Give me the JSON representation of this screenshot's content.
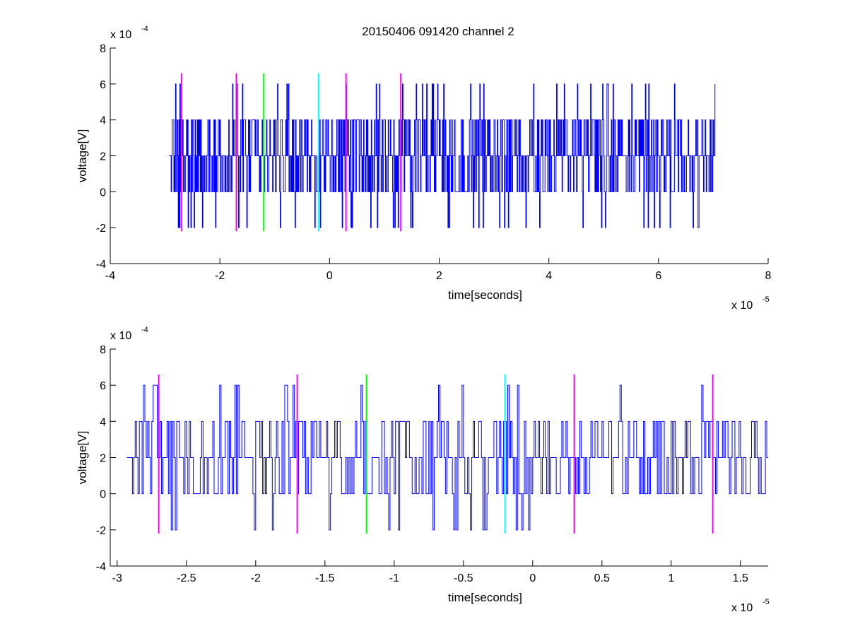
{
  "figure": {
    "title": "20150406 091420 channel 2"
  },
  "chart_data": [
    {
      "type": "line",
      "xlabel": "time[seconds]",
      "ylabel": "voltage[V]",
      "xlim": [
        -4e-05,
        8e-05
      ],
      "ylim": [
        -0.0004,
        0.0008
      ],
      "x_ticks": [
        -4,
        -2,
        0,
        2,
        4,
        6,
        8
      ],
      "y_ticks": [
        -4,
        -2,
        0,
        2,
        4,
        6,
        8
      ],
      "x_exponent_base": "x 10",
      "x_exponent_power": "-5",
      "y_exponent_base": "x 10",
      "y_exponent_power": "-4",
      "grid": false,
      "signal": {
        "color": "#0000ff",
        "x_start": -2.93e-05,
        "x_end": 7.03e-05,
        "sample_step": 1e-07,
        "levels": [
          -0.0002,
          0,
          0.0002,
          0.0004,
          0.0006
        ],
        "baseline": 0.0002
      },
      "markers": [
        {
          "x": -2.7e-05,
          "color": "#ff00ff"
        },
        {
          "x": -1.7e-05,
          "color": "#ff00ff"
        },
        {
          "x": -1.2e-05,
          "color": "#00ff00"
        },
        {
          "x": -2e-06,
          "color": "#00ffff"
        },
        {
          "x": 3e-06,
          "color": "#ff00ff"
        },
        {
          "x": 1.3e-05,
          "color": "#ff00ff"
        }
      ],
      "marker_range": [
        -0.00022,
        0.00066
      ]
    },
    {
      "type": "line",
      "xlabel": "time[seconds]",
      "ylabel": "voltage[V]",
      "xlim": [
        -3.05e-05,
        1.7e-05
      ],
      "ylim": [
        -0.0004,
        0.0008
      ],
      "x_ticks": [
        -3,
        -2.5,
        -2,
        -1.5,
        -1,
        -0.5,
        0,
        0.5,
        1,
        1.5
      ],
      "y_ticks": [
        -4,
        -2,
        0,
        2,
        4,
        6,
        8
      ],
      "x_exponent_base": "x 10",
      "x_exponent_power": "-5",
      "y_exponent_base": "x 10",
      "y_exponent_power": "-4",
      "grid": false,
      "signal": {
        "color": "#0000ff",
        "x_start": -2.93e-05,
        "x_end": 1.7e-05,
        "sample_step": 1e-07,
        "levels": [
          -0.0002,
          0,
          0.0002,
          0.0004,
          0.0006
        ],
        "baseline": 0.0002
      },
      "markers": [
        {
          "x": -2.7e-05,
          "color": "#ff00ff"
        },
        {
          "x": -1.7e-05,
          "color": "#ff00ff"
        },
        {
          "x": -1.2e-05,
          "color": "#00ff00"
        },
        {
          "x": -2e-06,
          "color": "#00ffff"
        },
        {
          "x": 3e-06,
          "color": "#ff00ff"
        },
        {
          "x": 1.3e-05,
          "color": "#ff00ff"
        }
      ],
      "marker_range": [
        -0.00022,
        0.00066
      ]
    }
  ]
}
